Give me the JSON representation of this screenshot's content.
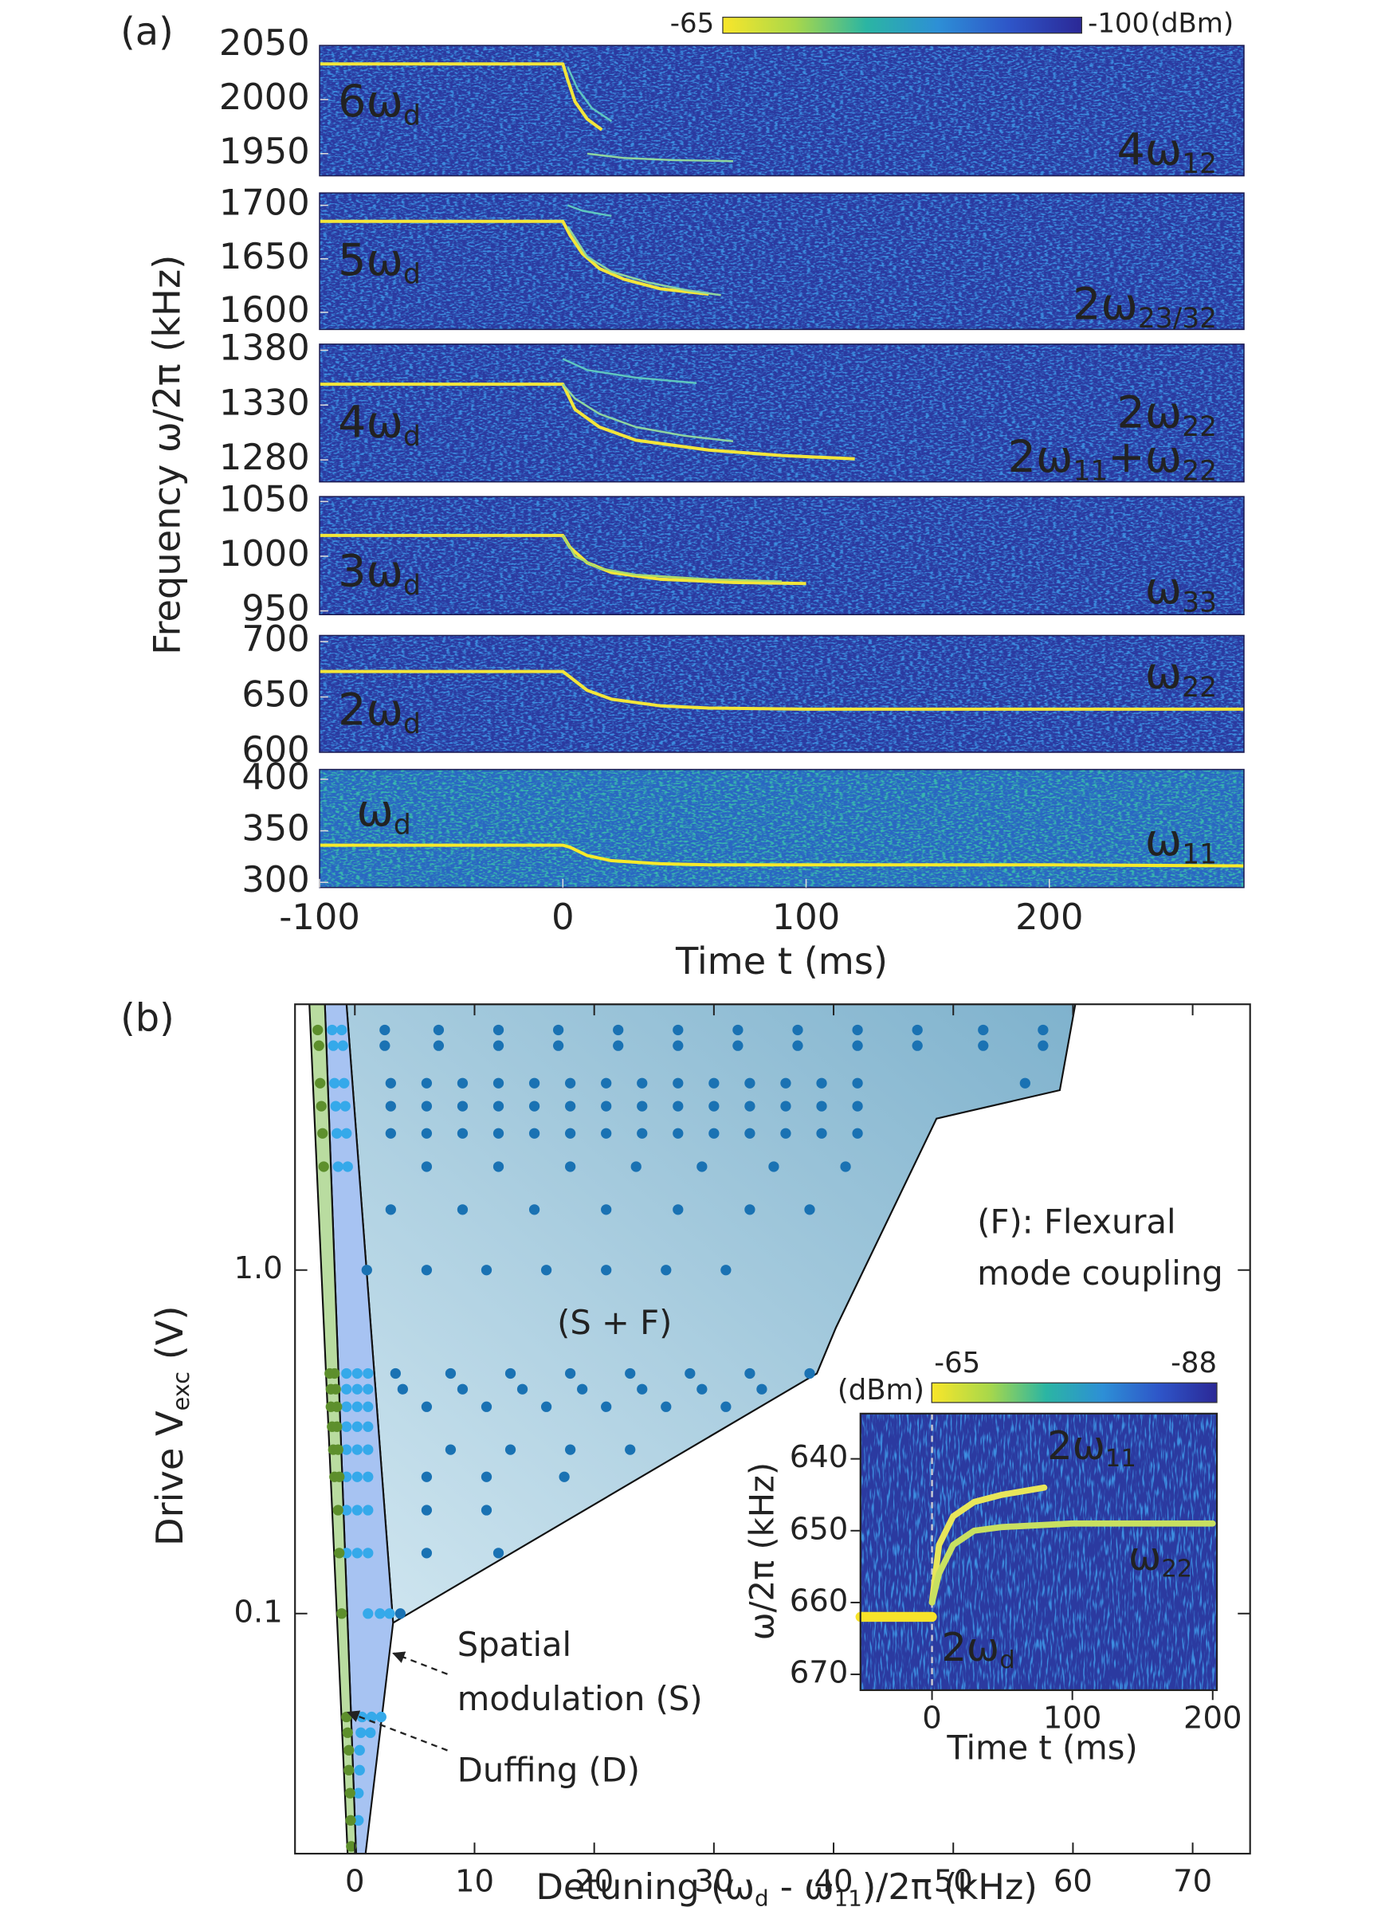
{
  "figure_a": {
    "label": "(a)",
    "ylabel": "Frequency ω/2π (kHz)",
    "xlabel": "Time t (ms)",
    "xlim": [
      -100,
      280
    ],
    "xticks": [
      -100,
      0,
      100,
      200
    ],
    "colorbar": {
      "range": [
        -65,
        -100
      ],
      "unit": "(dBm)",
      "colors": [
        "#f9e62a",
        "#a9d84a",
        "#2bb5a3",
        "#2d8fd6",
        "#2e55c8",
        "#2b2896"
      ]
    }
  },
  "chart_data": [
    {
      "type": "heatmap",
      "ylim": [
        1929.5,
        2050
      ],
      "yticks": [
        1950,
        2000,
        2050
      ],
      "background": "#2b3aa0",
      "noise": "#3c8ee0",
      "annotations": [
        {
          "parts": [
            "6ω",
            "d"
          ]
        },
        {
          "parts": [
            "4ω",
            "12"
          ]
        }
      ],
      "traces": [
        {
          "color": "#f3e63a",
          "x": [
            -100,
            0,
            2,
            5,
            10,
            16
          ],
          "y": [
            2033,
            2033,
            2018,
            1998,
            1982,
            1972
          ]
        },
        {
          "color": "#5fc8c0",
          "x": [
            2,
            6,
            12,
            20
          ],
          "y": [
            2030,
            2010,
            1992,
            1980
          ]
        },
        {
          "color": "#8fd6a0",
          "x": [
            10,
            25,
            45,
            70
          ],
          "y": [
            1950,
            1946,
            1944,
            1943
          ]
        }
      ]
    },
    {
      "type": "heatmap",
      "ylim": [
        1584,
        1711.5
      ],
      "yticks": [
        1600,
        1650,
        1700
      ],
      "background": "#2b3aa0",
      "noise": "#3c8ee0",
      "annotations": [
        {
          "parts": [
            "5ω",
            "d"
          ]
        },
        {
          "parts": [
            "2ω",
            "23/32"
          ]
        }
      ],
      "traces": [
        {
          "color": "#f3e63a",
          "x": [
            -100,
            0,
            3,
            8,
            15,
            25,
            40,
            60
          ],
          "y": [
            1685,
            1685,
            1672,
            1655,
            1641,
            1631,
            1622,
            1617
          ]
        },
        {
          "color": "#8fd6a0",
          "x": [
            2,
            10,
            20,
            35,
            50,
            65
          ],
          "y": [
            1680,
            1652,
            1638,
            1628,
            1621,
            1616
          ]
        },
        {
          "color": "#5fc8c0",
          "x": [
            2,
            8,
            20
          ],
          "y": [
            1700,
            1695,
            1690
          ]
        }
      ]
    },
    {
      "type": "heatmap",
      "ylim": [
        1260,
        1385.5
      ],
      "yticks": [
        1280,
        1330,
        1380
      ],
      "background": "#2b3aa0",
      "noise": "#3c8ee0",
      "annotations": [
        {
          "parts": [
            "4ω",
            "d"
          ]
        },
        {
          "parts": [
            "2ω",
            "22"
          ]
        },
        {
          "parts": [
            "2ω",
            "11",
            "+ω",
            "22"
          ]
        }
      ],
      "traces": [
        {
          "color": "#f3e63a",
          "x": [
            -100,
            0,
            5,
            15,
            30,
            60,
            90,
            120
          ],
          "y": [
            1349,
            1349,
            1326,
            1310,
            1298,
            1289,
            1284,
            1281
          ]
        },
        {
          "color": "#8fd6a0",
          "x": [
            0,
            5,
            15,
            30,
            50,
            70
          ],
          "y": [
            1349,
            1336,
            1322,
            1310,
            1302,
            1297
          ]
        },
        {
          "color": "#5fc8c0",
          "x": [
            0,
            10,
            30,
            55
          ],
          "y": [
            1372,
            1362,
            1355,
            1350
          ]
        }
      ]
    },
    {
      "type": "heatmap",
      "ylim": [
        946.6,
        1054.5
      ],
      "yticks": [
        950,
        1000,
        1050
      ],
      "background": "#2b3aa0",
      "noise": "#3c8ee0",
      "annotations": [
        {
          "parts": [
            "3ω",
            "d"
          ]
        },
        {
          "parts": [
            "ω",
            "33"
          ]
        }
      ],
      "traces": [
        {
          "color": "#f3e63a",
          "x": [
            -100,
            0,
            3,
            10,
            20,
            40,
            70,
            100
          ],
          "y": [
            1019,
            1019,
            1008,
            994,
            985,
            979,
            976,
            975
          ]
        },
        {
          "color": "#a8dc70",
          "x": [
            0,
            5,
            15,
            30,
            60,
            90
          ],
          "y": [
            1019,
            1000,
            989,
            983,
            979,
            977
          ]
        }
      ]
    },
    {
      "type": "heatmap",
      "ylim": [
        600,
        705.5
      ],
      "yticks": [
        600,
        650,
        700
      ],
      "background": "#2b3aa0",
      "noise": "#3c8ee0",
      "annotations": [
        {
          "parts": [
            "2ω",
            "d"
          ]
        },
        {
          "parts": [
            "ω",
            "22"
          ]
        }
      ],
      "traces": [
        {
          "color": "#f3e63a",
          "x": [
            -100,
            0,
            3,
            10,
            20,
            40,
            60,
            100,
            200,
            280
          ],
          "y": [
            673,
            673,
            668,
            656,
            648,
            642,
            640,
            639,
            639,
            639
          ]
        }
      ]
    },
    {
      "type": "heatmap",
      "ylim": [
        295,
        409.5
      ],
      "yticks": [
        300,
        350,
        400
      ],
      "background": "#2a67c2",
      "noise": "#39b8ae",
      "annotations": [
        {
          "parts": [
            "ω",
            "d"
          ]
        },
        {
          "parts": [
            "ω",
            "11"
          ]
        }
      ],
      "traces": [
        {
          "color": "#f7ea2a",
          "x": [
            -100,
            0,
            3,
            10,
            20,
            40,
            60,
            100,
            200,
            280
          ],
          "y": [
            336,
            336,
            334,
            326,
            321,
            318,
            317,
            317,
            317,
            316
          ]
        }
      ]
    },
    {
      "type": "scatter",
      "panel_label": "(b)",
      "log_y": true,
      "xlabel": {
        "parts": [
          "Detuning (ω",
          "d",
          " - ω",
          "11",
          ")/2π (kHz)"
        ]
      },
      "ylabel": {
        "parts": [
          "Drive V",
          "exc",
          " (V)"
        ]
      },
      "xlim": [
        -5,
        74.8
      ],
      "xticks": [
        0,
        10,
        20,
        30,
        40,
        50,
        60,
        70
      ],
      "ylim": [
        0.02,
        5.94
      ],
      "yticks": [
        0.1,
        {
          "value": 1,
          "label": "1.0"
        }
      ],
      "regions": [
        {
          "colors": [
            "#d0e6f0",
            "#7fb2cd"
          ],
          "x": [
            -0.7,
            60.2,
            58.9,
            48.6,
            40.2,
            38.6,
            3.2
          ],
          "y": [
            5.94,
            5.94,
            3.34,
            2.76,
            0.68,
            0.5,
            0.094
          ]
        },
        {
          "colors": [
            "#a7c3f2",
            "#a7c3f2"
          ],
          "x": [
            -2.5,
            -0.7,
            3.2,
            0.9,
            0.1
          ],
          "y": [
            5.94,
            5.94,
            0.094,
            0.02,
            0.02
          ]
        },
        {
          "colors": [
            "#b9dca0",
            "#b9dca0"
          ],
          "x": [
            -3.8,
            -2.5,
            0.1,
            -0.6
          ],
          "y": [
            5.94,
            5.94,
            0.02,
            0.02
          ]
        }
      ],
      "series": [
        {
          "color": "#1a72b3",
          "x": [
            2.5,
            7,
            12,
            17,
            22,
            27,
            32,
            37,
            42,
            47,
            52.5,
            57.5,
            2.5,
            7,
            12,
            17,
            22,
            27,
            32,
            37,
            42,
            47,
            52.5,
            57.5,
            3,
            6,
            9,
            12,
            15,
            18,
            21,
            24,
            27,
            30,
            33,
            36,
            39,
            42,
            56,
            3,
            6,
            9,
            12,
            15,
            18,
            21,
            24,
            27,
            30,
            33,
            36,
            39,
            42,
            3,
            6,
            9,
            12,
            15,
            18,
            21,
            24,
            27,
            30,
            33,
            36,
            39,
            42,
            6,
            12,
            18,
            23.5,
            29,
            35,
            41,
            3,
            9,
            15,
            21,
            27,
            33,
            38,
            1,
            6,
            11,
            16,
            21,
            26,
            31,
            3.4,
            8,
            13,
            18,
            23,
            28,
            33,
            38,
            4,
            9,
            14,
            19,
            24,
            29,
            34,
            6,
            11,
            16,
            21,
            26,
            31,
            8,
            13,
            18,
            23,
            6,
            11,
            17.5,
            6,
            11,
            6,
            12,
            3.8
          ],
          "y": [
            5,
            5,
            5,
            5,
            5,
            5,
            5,
            5,
            5,
            5,
            5,
            5,
            4.5,
            4.5,
            4.5,
            4.5,
            4.5,
            4.5,
            4.5,
            4.5,
            4.5,
            4.5,
            4.5,
            4.5,
            3.5,
            3.5,
            3.5,
            3.5,
            3.5,
            3.5,
            3.5,
            3.5,
            3.5,
            3.5,
            3.5,
            3.5,
            3.5,
            3.5,
            3.5,
            3,
            3,
            3,
            3,
            3,
            3,
            3,
            3,
            3,
            3,
            3,
            3,
            3,
            3,
            2.5,
            2.5,
            2.5,
            2.5,
            2.5,
            2.5,
            2.5,
            2.5,
            2.5,
            2.5,
            2.5,
            2.5,
            2.5,
            2.5,
            2,
            2,
            2,
            2,
            2,
            2,
            2,
            1.5,
            1.5,
            1.5,
            1.5,
            1.5,
            1.5,
            1.5,
            1,
            1,
            1,
            1,
            1,
            1,
            1,
            0.5,
            0.5,
            0.5,
            0.5,
            0.5,
            0.5,
            0.5,
            0.5,
            0.45,
            0.45,
            0.45,
            0.45,
            0.45,
            0.45,
            0.45,
            0.4,
            0.4,
            0.4,
            0.4,
            0.4,
            0.4,
            0.3,
            0.3,
            0.3,
            0.3,
            0.25,
            0.25,
            0.25,
            0.2,
            0.2,
            0.15,
            0.15,
            0.1
          ]
        },
        {
          "color": "#35a9ea",
          "x": [
            -1.9,
            -1.1,
            -1.8,
            -1.0,
            -1.7,
            -0.9,
            -1.6,
            -0.8,
            -1.5,
            -0.7,
            -1.4,
            -0.6,
            -0.7,
            0.2,
            1.1,
            -0.7,
            0.2,
            1.1,
            -0.7,
            0.2,
            1.1,
            -0.7,
            0.2,
            1.1,
            -0.7,
            0.2,
            1.1,
            -0.7,
            0.2,
            1.1,
            -0.7,
            0.2,
            1.1,
            -0.7,
            0.2,
            1.1,
            1.1,
            2.1,
            2.9,
            0.6,
            1.4,
            2.2,
            0.5,
            1.3,
            0.4,
            0.4,
            0.3,
            0.3
          ],
          "y": [
            5,
            5,
            4.5,
            4.5,
            3.5,
            3.5,
            3,
            3,
            2.5,
            2.5,
            2,
            2,
            0.5,
            0.5,
            0.5,
            0.45,
            0.45,
            0.45,
            0.4,
            0.4,
            0.4,
            0.35,
            0.35,
            0.35,
            0.3,
            0.3,
            0.3,
            0.25,
            0.25,
            0.25,
            0.2,
            0.2,
            0.2,
            0.15,
            0.15,
            0.15,
            0.1,
            0.1,
            0.1,
            0.05,
            0.05,
            0.05,
            0.045,
            0.045,
            0.04,
            0.035,
            0.03,
            0.025
          ]
        },
        {
          "color": "#5d8f2c",
          "x": [
            -3.1,
            -3.0,
            -2.9,
            -2.8,
            -2.7,
            -2.6,
            -2.1,
            -1.7,
            -2.0,
            -1.6,
            -2.0,
            -1.5,
            -1.9,
            -1.5,
            -1.8,
            -1.4,
            -1.7,
            -1.3,
            -1.4,
            -1.3,
            -1.1,
            -0.7,
            -0.6,
            -0.5,
            -0.5,
            -0.4,
            -0.35,
            -0.3
          ],
          "y": [
            5,
            4.5,
            3.5,
            3,
            2.5,
            2,
            0.5,
            0.5,
            0.45,
            0.45,
            0.4,
            0.4,
            0.35,
            0.35,
            0.3,
            0.3,
            0.25,
            0.25,
            0.2,
            0.15,
            0.1,
            0.05,
            0.045,
            0.04,
            0.035,
            0.03,
            0.025,
            0.021
          ]
        }
      ],
      "annotations": [
        "(F): Flexural",
        "mode coupling",
        "(S + F)",
        "Spatial",
        "modulation (S)",
        "Duffing (D)"
      ]
    },
    {
      "type": "heatmap",
      "inset": true,
      "background": "#2b3aa0",
      "noise": "#3c8ee0",
      "xlabel": "Time t (ms)",
      "ylabel": "ω/2π (kHz)",
      "xlim": [
        -51,
        203
      ],
      "xticks": [
        0,
        100,
        200
      ],
      "ylim": [
        672.2,
        633.7
      ],
      "yticks": [
        640,
        650,
        660,
        670
      ],
      "colorbar": {
        "range": [
          -65,
          -88
        ],
        "unit": "(dBm)",
        "colors": [
          "#f9e62a",
          "#a9d84a",
          "#2bb5a3",
          "#2d8fd6",
          "#2e55c8",
          "#2b2896"
        ]
      },
      "annotations": [
        {
          "parts": [
            "2ω",
            "11"
          ]
        },
        {
          "parts": [
            "ω",
            "22"
          ]
        },
        {
          "parts": [
            "2ω",
            "d"
          ]
        }
      ],
      "traces": [
        {
          "color": "#f7e32a",
          "width": 8,
          "x": [
            -51,
            0
          ],
          "y": [
            662,
            662
          ]
        },
        {
          "color": "#e8e65a",
          "width": 5,
          "x": [
            0,
            5,
            15,
            30,
            50,
            80
          ],
          "y": [
            660,
            652,
            648,
            646,
            645,
            644
          ]
        },
        {
          "color": "#c8e060",
          "width": 5,
          "x": [
            0,
            5,
            15,
            30,
            50,
            100,
            150,
            200
          ],
          "y": [
            660,
            656,
            652,
            650,
            649.5,
            649,
            649,
            649
          ]
        }
      ]
    }
  ]
}
